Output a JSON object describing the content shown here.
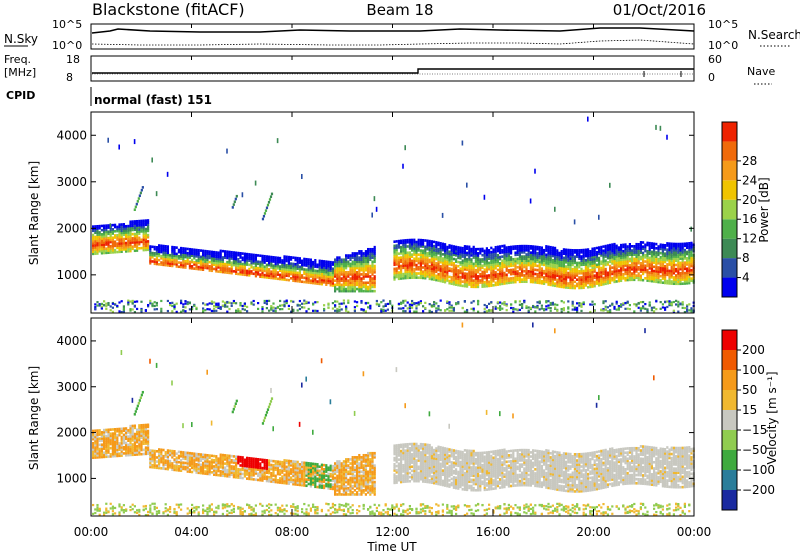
{
  "header": {
    "station": "Blackstone (fitACF)",
    "beam": "Beam 18",
    "date": "01/Oct/2016"
  },
  "sky_panel": {
    "left_label": "N.Sky",
    "right_label": "N.Search",
    "left_ticks": [
      "10^5",
      "10^0"
    ],
    "right_ticks": [
      "10^5",
      "10^0"
    ]
  },
  "freq_panel": {
    "left_label_1": "Freq.",
    "left_label_2": "[MHz]",
    "right_label": "Nave",
    "left_ticks": [
      "18",
      "8"
    ],
    "right_ticks": [
      "60",
      "0"
    ]
  },
  "cpid": {
    "label": "CPID",
    "value": "normal (fast) 151"
  },
  "colors": {
    "power": [
      "#0000ee",
      "#2a4fa6",
      "#3d8a55",
      "#4fb04a",
      "#9bd24a",
      "#f0c400",
      "#f59a1a",
      "#f06a0a",
      "#ee2200"
    ],
    "velocity": [
      "#ee0000",
      "#f05a00",
      "#f59a1a",
      "#f0b830",
      "#c8c8c0",
      "#90cc50",
      "#3faa3f",
      "#2a7d9a",
      "#1a2aa0"
    ]
  },
  "chart_data": [
    {
      "type": "heatmap",
      "name": "power",
      "ylabel": "Slant Range [km]",
      "y_ticks": [
        "1000",
        "2000",
        "3000",
        "4000"
      ],
      "ylim": [
        180,
        4500
      ],
      "x_ticks": [
        "00:00",
        "04:00",
        "08:00",
        "12:00",
        "16:00",
        "20:00",
        "00:00"
      ],
      "xlim_hours": [
        0,
        24
      ],
      "colorbar_label": "Power [dB]",
      "colorbar_ticks": [
        "4",
        "8",
        "12",
        "16",
        "20",
        "24",
        "28"
      ],
      "colorbar_range": [
        0,
        32
      ]
    },
    {
      "type": "heatmap",
      "name": "velocity",
      "ylabel": "Slant Range [km]",
      "y_ticks": [
        "1000",
        "2000",
        "3000",
        "4000"
      ],
      "ylim": [
        180,
        4500
      ],
      "x_ticks": [
        "00:00",
        "04:00",
        "08:00",
        "12:00",
        "16:00",
        "20:00",
        "00:00"
      ],
      "xlim_hours": [
        0,
        24
      ],
      "colorbar_label": "Velocity [m s⁻¹]",
      "colorbar_ticks": [
        "200",
        "100",
        "50",
        "15",
        "−15",
        "−50",
        "−100",
        "−200"
      ],
      "xlabel": "Time UT"
    }
  ]
}
